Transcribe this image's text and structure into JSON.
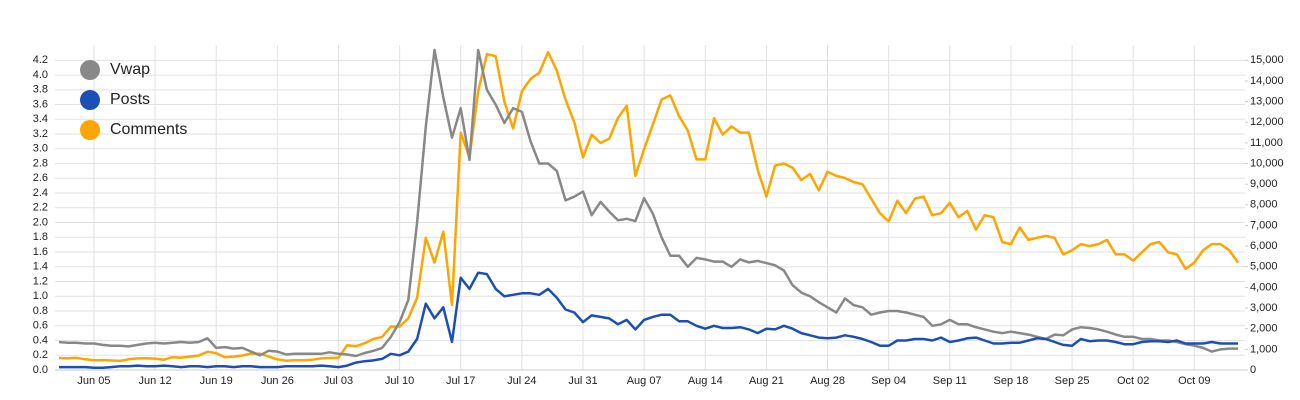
{
  "chart_data": {
    "type": "line",
    "categories": [
      null,
      null,
      null,
      null,
      "Jun 05",
      null,
      null,
      null,
      null,
      null,
      null,
      "Jun 12",
      null,
      null,
      null,
      null,
      null,
      null,
      "Jun 19",
      null,
      null,
      null,
      null,
      null,
      null,
      "Jun 26",
      null,
      null,
      null,
      null,
      null,
      null,
      "Jul 03",
      null,
      null,
      null,
      null,
      null,
      null,
      "Jul 10",
      null,
      null,
      null,
      null,
      null,
      null,
      "Jul 17",
      null,
      null,
      null,
      null,
      null,
      null,
      "Jul 24",
      null,
      null,
      null,
      null,
      null,
      null,
      "Jul 31",
      null,
      null,
      null,
      null,
      null,
      null,
      "Aug 07",
      null,
      null,
      null,
      null,
      null,
      null,
      "Aug 14",
      null,
      null,
      null,
      null,
      null,
      null,
      "Aug 21",
      null,
      null,
      null,
      null,
      null,
      null,
      "Aug 28",
      null,
      null,
      null,
      null,
      null,
      null,
      "Sep 04",
      null,
      null,
      null,
      null,
      null,
      null,
      "Sep 11",
      null,
      null,
      null,
      null,
      null,
      null,
      "Sep 18",
      null,
      null,
      null,
      null,
      null,
      null,
      "Sep 25",
      null,
      null,
      null,
      null,
      null,
      null,
      "Oct 02",
      null,
      null,
      null,
      null,
      null,
      null,
      "Oct 09",
      null,
      null,
      null,
      null,
      null
    ],
    "series": [
      {
        "name": "Vwap",
        "color": "#888888",
        "values": [
          0.38,
          0.37,
          0.37,
          0.36,
          0.36,
          0.34,
          0.33,
          0.33,
          0.32,
          0.34,
          0.36,
          0.37,
          0.36,
          0.37,
          0.38,
          0.37,
          0.38,
          0.43,
          0.3,
          0.31,
          0.29,
          0.3,
          0.25,
          0.2,
          0.26,
          0.25,
          0.21,
          0.22,
          0.22,
          0.22,
          0.22,
          0.24,
          0.22,
          0.21,
          0.19,
          0.23,
          0.26,
          0.3,
          0.45,
          0.65,
          0.95,
          2.0,
          3.3,
          4.34,
          3.7,
          3.15,
          3.55,
          2.85,
          4.34,
          3.8,
          3.6,
          3.35,
          3.55,
          3.5,
          3.1,
          2.8,
          2.8,
          2.7,
          2.3,
          2.35,
          2.42,
          2.1,
          2.28,
          2.15,
          2.03,
          2.05,
          2.02,
          2.33,
          2.12,
          1.8,
          1.55,
          1.55,
          1.4,
          1.52,
          1.5,
          1.47,
          1.47,
          1.4,
          1.5,
          1.46,
          1.48,
          1.45,
          1.42,
          1.35,
          1.15,
          1.05,
          1.0,
          0.92,
          0.85,
          0.78,
          0.97,
          0.88,
          0.85,
          0.75,
          0.78,
          0.8,
          0.8,
          0.78,
          0.75,
          0.72,
          0.6,
          0.62,
          0.68,
          0.62,
          0.62,
          0.58,
          0.55,
          0.52,
          0.5,
          0.52,
          0.5,
          0.48,
          0.45,
          0.42,
          0.48,
          0.47,
          0.55,
          0.58,
          0.57,
          0.55,
          0.52,
          0.48,
          0.45,
          0.45,
          0.42,
          0.42,
          0.4,
          0.4,
          0.38,
          0.35,
          0.33,
          0.3,
          0.25,
          0.28,
          0.29,
          0.29
        ]
      },
      {
        "name": "Posts",
        "color": "#1c4fb5",
        "values": [
          0.04,
          0.04,
          0.04,
          0.04,
          0.03,
          0.03,
          0.04,
          0.05,
          0.05,
          0.06,
          0.05,
          0.05,
          0.06,
          0.05,
          0.04,
          0.05,
          0.05,
          0.04,
          0.05,
          0.05,
          0.04,
          0.05,
          0.05,
          0.04,
          0.04,
          0.04,
          0.05,
          0.05,
          0.05,
          0.05,
          0.06,
          0.05,
          0.04,
          0.06,
          0.1,
          0.12,
          0.13,
          0.15,
          0.22,
          0.2,
          0.25,
          0.42,
          0.9,
          0.7,
          0.85,
          0.38,
          1.25,
          1.1,
          1.32,
          1.3,
          1.1,
          1.0,
          1.02,
          1.04,
          1.04,
          1.02,
          1.1,
          0.98,
          0.82,
          0.78,
          0.65,
          0.74,
          0.72,
          0.7,
          0.62,
          0.68,
          0.55,
          0.68,
          0.72,
          0.75,
          0.75,
          0.66,
          0.66,
          0.6,
          0.56,
          0.6,
          0.57,
          0.57,
          0.58,
          0.55,
          0.5,
          0.56,
          0.55,
          0.6,
          0.56,
          0.5,
          0.47,
          0.44,
          0.43,
          0.44,
          0.47,
          0.45,
          0.42,
          0.38,
          0.33,
          0.33,
          0.4,
          0.4,
          0.42,
          0.42,
          0.4,
          0.44,
          0.38,
          0.4,
          0.43,
          0.44,
          0.4,
          0.36,
          0.36,
          0.37,
          0.37,
          0.4,
          0.43,
          0.42,
          0.38,
          0.34,
          0.33,
          0.42,
          0.39,
          0.4,
          0.4,
          0.38,
          0.35,
          0.35,
          0.38,
          0.39,
          0.39,
          0.38,
          0.4,
          0.36,
          0.36,
          0.36,
          0.38,
          0.36,
          0.36,
          0.36
        ]
      },
      {
        "name": "Comments",
        "color": "#ffa500",
        "axis": "y2",
        "values": [
          580,
          560,
          590,
          520,
          470,
          480,
          460,
          440,
          520,
          560,
          570,
          550,
          500,
          620,
          600,
          650,
          700,
          880,
          820,
          620,
          650,
          700,
          800,
          790,
          660,
          520,
          450,
          470,
          470,
          500,
          560,
          580,
          600,
          1200,
          1150,
          1300,
          1500,
          1600,
          2100,
          2100,
          2500,
          3500,
          6400,
          5200,
          6700,
          3150,
          11500,
          10300,
          13500,
          15300,
          15200,
          13000,
          11700,
          13500,
          14100,
          14400,
          15400,
          14500,
          13100,
          12000,
          10300,
          11400,
          11000,
          11200,
          12200,
          12800,
          9400,
          10700,
          11900,
          13100,
          13300,
          12300,
          11600,
          10200,
          10200,
          12200,
          11400,
          11800,
          11500,
          11500,
          9700,
          8400,
          9900,
          10000,
          9800,
          9200,
          9500,
          8700,
          9600,
          9400,
          9300,
          9100,
          9000,
          8300,
          7600,
          7200,
          8200,
          7600,
          8300,
          8400,
          7500,
          7600,
          8100,
          7400,
          7700,
          6800,
          7500,
          7400,
          6200,
          6100,
          6900,
          6300,
          6400,
          6500,
          6400,
          5600,
          5800,
          6100,
          6000,
          6100,
          6300,
          5600,
          5600,
          5300,
          5700,
          6100,
          6200,
          5700,
          5600,
          4900,
          5200,
          5800,
          6100,
          6100,
          5800,
          5200
        ]
      }
    ],
    "ylim": [
      0,
      4.34
    ],
    "yticks": [
      {
        "value": 0,
        "label": "0.0"
      },
      {
        "value": 0.2,
        "label": "0.2"
      },
      {
        "value": 0.4,
        "label": "0.4"
      },
      {
        "value": 0.6,
        "label": "0.6"
      },
      {
        "value": 0.8,
        "label": "0.8"
      },
      {
        "value": 1,
        "label": "1.0"
      },
      {
        "value": 1.2,
        "label": "1.2"
      },
      {
        "value": 1.4,
        "label": "1.4"
      },
      {
        "value": 1.6,
        "label": "1.6"
      },
      {
        "value": 1.8,
        "label": "1.8"
      },
      {
        "value": 2,
        "label": "2.0"
      },
      {
        "value": 2.2,
        "label": "2.2"
      },
      {
        "value": 2.4,
        "label": "2.4"
      },
      {
        "value": 2.6,
        "label": "2.6"
      },
      {
        "value": 2.8,
        "label": "2.8"
      },
      {
        "value": 3,
        "label": "3.0"
      },
      {
        "value": 3.2,
        "label": "3.2"
      },
      {
        "value": 3.4,
        "label": "3.4"
      },
      {
        "value": 3.6,
        "label": "3.6"
      },
      {
        "value": 3.8,
        "label": "3.8"
      },
      {
        "value": 4,
        "label": "4.0"
      },
      {
        "value": 4.2,
        "label": "4.2"
      }
    ],
    "y2lim": [
      0,
      15500
    ],
    "y2ticks": [
      0,
      {
        "value": 1000,
        "label": "1,000"
      },
      {
        "value": 2000,
        "label": "2,000"
      },
      {
        "value": 3000,
        "label": "3,000"
      },
      {
        "value": 4000,
        "label": "4,000"
      },
      {
        "value": 5000,
        "label": "5,000"
      },
      {
        "value": 6000,
        "label": "6,000"
      },
      {
        "value": 7000,
        "label": "7,000"
      },
      {
        "value": 8000,
        "label": "8,000"
      },
      {
        "value": 9000,
        "label": "9,000"
      },
      {
        "value": 10000,
        "label": "10,000"
      },
      {
        "value": 11000,
        "label": "11,000"
      },
      {
        "value": 12000,
        "label": "12,000"
      },
      {
        "value": 13000,
        "label": "13,000"
      },
      {
        "value": 14000,
        "label": "14,000"
      },
      {
        "value": 15000,
        "label": "15,000"
      }
    ],
    "grid": true,
    "legend": "upper-left"
  }
}
